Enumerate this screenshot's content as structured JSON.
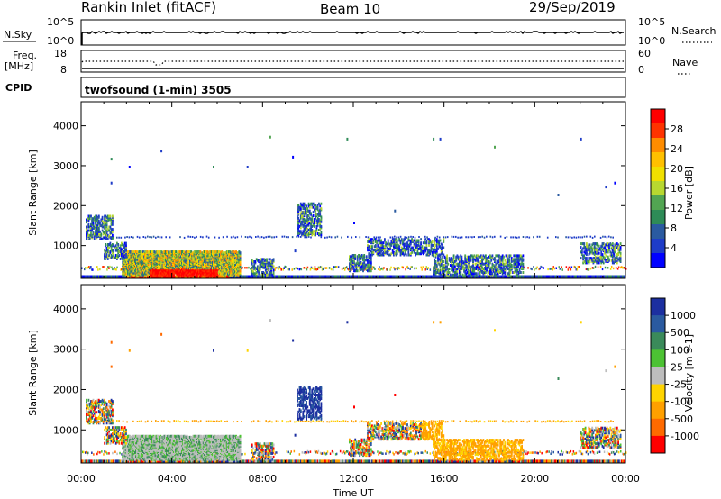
{
  "header": {
    "station": "Rankin Inlet (fitACF)",
    "beam": "Beam 10",
    "date": "29/Sep/2019"
  },
  "top_panels": {
    "nsky_label": "N.Sky",
    "nsky_ticks": [
      "10^5",
      "10^0"
    ],
    "nsearch_label": "N.Search",
    "nsearch_ticks": [
      "10^5",
      "10^0"
    ],
    "freq_label_1": "Freq.",
    "freq_label_2": "[MHz]",
    "freq_ticks": [
      "18",
      "8"
    ],
    "nave_label": "Nave",
    "nave_ticks": [
      "60",
      "0"
    ],
    "cpid_label": "CPID",
    "cpid_text": "twofsound (1-min) 3505"
  },
  "chart_data": [
    {
      "type": "heatmap",
      "title": "Power",
      "ylabel": "Slant Range [km]",
      "ylim": [
        180,
        4600
      ],
      "yticks": [
        "1000",
        "2000",
        "3000",
        "4000"
      ],
      "xlim_hours": [
        0,
        24
      ],
      "xticks": [
        "00:00",
        "04:00",
        "08:00",
        "12:00",
        "16:00",
        "20:00",
        "00:00"
      ],
      "colorbar_label": "Power [dB]",
      "colorbar_ticks": [
        "28",
        "24",
        "20",
        "16",
        "12",
        "8",
        "4"
      ],
      "colorbar_colors": [
        "#ff0000",
        "#ff3300",
        "#ff8c00",
        "#ffc000",
        "#f0e000",
        "#b8d830",
        "#52a552",
        "#2e8b57",
        "#2a5aa0",
        "#1e3cc8",
        "#0000ff"
      ]
    },
    {
      "type": "heatmap",
      "title": "Velocity",
      "ylabel": "Slant Range [km]",
      "xlabel": "Time UT",
      "ylim": [
        180,
        4600
      ],
      "yticks": [
        "1000",
        "2000",
        "3000",
        "4000"
      ],
      "xlim_hours": [
        0,
        24
      ],
      "xticks": [
        "00:00",
        "04:00",
        "08:00",
        "12:00",
        "16:00",
        "20:00",
        "00:00"
      ],
      "colorbar_label": "Velocity [m s-1]",
      "colorbar_ticks": [
        "1000",
        "500",
        "100",
        "25",
        "-25",
        "-100",
        "-500",
        "-1000"
      ],
      "colorbar_colors": [
        "#1c2fa0",
        "#2a5aa0",
        "#3a8a5a",
        "#4cc233",
        "#bdbdbd",
        "#ffd400",
        "#ffa000",
        "#ff6a00",
        "#ff0000"
      ]
    }
  ]
}
